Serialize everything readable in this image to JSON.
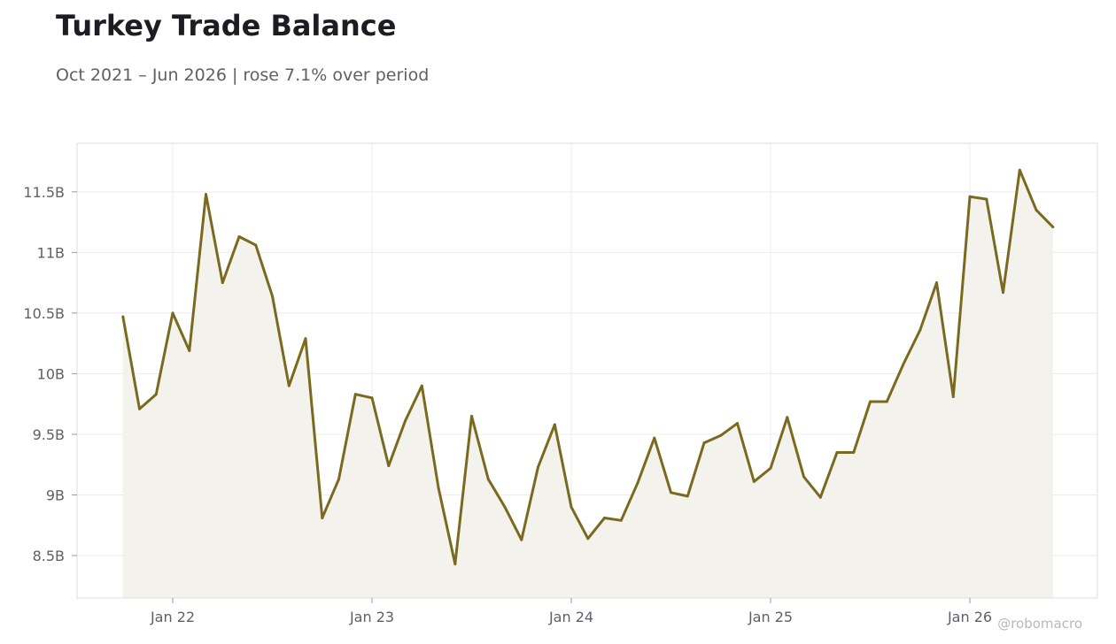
{
  "header": {
    "title": "Turkey Trade Balance",
    "subtitle": "Oct 2021 – Jun 2026 | rose 7.1% over period"
  },
  "watermark": "@robomacro",
  "colors": {
    "line": "#7a6a20",
    "fill": "#f4f2ed",
    "grid": "#ececec",
    "frame": "#dddddd"
  },
  "chart_data": {
    "type": "line",
    "title": "Turkey Trade Balance",
    "subtitle": "Oct 2021 – Jun 2026 | rose 7.1% over period",
    "xlabel": "",
    "ylabel": "",
    "ylim": [
      8.15,
      11.9
    ],
    "y_ticks": [
      8.5,
      9,
      9.5,
      10,
      10.5,
      11,
      11.5
    ],
    "y_tick_labels": [
      "8.5B",
      "9B",
      "9.5B",
      "10B",
      "10.5B",
      "11B",
      "11.5B"
    ],
    "x_ticks": [
      "2022-01",
      "2023-01",
      "2024-01",
      "2025-01",
      "2026-01"
    ],
    "x_tick_labels": [
      "Jan 22",
      "Jan 23",
      "Jan 24",
      "Jan 25",
      "Jan 26"
    ],
    "grid": true,
    "area_fill": true,
    "series": [
      {
        "x": [
          "2021-10",
          "2021-11",
          "2021-12",
          "2022-01",
          "2022-02",
          "2022-03",
          "2022-04",
          "2022-05",
          "2022-06",
          "2022-07",
          "2022-08",
          "2022-09",
          "2022-10",
          "2022-11",
          "2022-12",
          "2023-01",
          "2023-02",
          "2023-03",
          "2023-04",
          "2023-05",
          "2023-06",
          "2023-07",
          "2023-08",
          "2023-09",
          "2023-10",
          "2023-11",
          "2023-12",
          "2024-01",
          "2024-02",
          "2024-03",
          "2024-04",
          "2024-05",
          "2024-06",
          "2024-07",
          "2024-08",
          "2024-09",
          "2024-10",
          "2024-11",
          "2024-12",
          "2025-01",
          "2025-02",
          "2025-03",
          "2025-04",
          "2025-05",
          "2025-06",
          "2025-07",
          "2025-08",
          "2025-09",
          "2025-10",
          "2025-11",
          "2025-12",
          "2026-01",
          "2026-02",
          "2026-03",
          "2026-04",
          "2026-05",
          "2026-06"
        ],
        "values": [
          10.47,
          9.71,
          9.83,
          10.5,
          10.19,
          11.48,
          10.75,
          11.13,
          11.06,
          10.64,
          9.9,
          10.29,
          8.81,
          9.13,
          9.83,
          9.8,
          9.24,
          9.61,
          9.9,
          9.06,
          8.43,
          9.65,
          9.13,
          8.9,
          8.63,
          9.23,
          9.58,
          8.9,
          8.64,
          8.81,
          8.79,
          9.1,
          9.47,
          9.02,
          8.99,
          9.43,
          9.49,
          9.59,
          9.11,
          9.22,
          9.64,
          9.15,
          8.98,
          9.35,
          9.35,
          9.77,
          9.77,
          10.08,
          10.36,
          10.75,
          9.81,
          11.46,
          11.44,
          10.67,
          11.68,
          11.35,
          11.21
        ]
      }
    ]
  }
}
